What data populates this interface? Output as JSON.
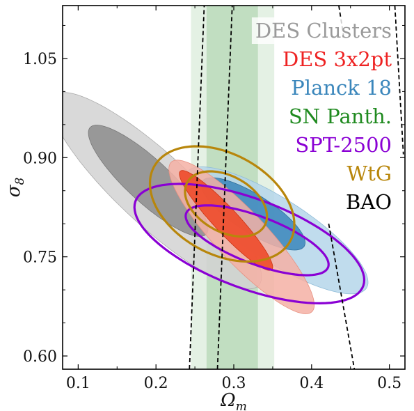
{
  "chart_data": {
    "type": "contour",
    "xlabel": "Ω",
    "xlabel_sub": "m",
    "ylabel": "σ",
    "ylabel_sub": "8",
    "xlim": [
      0.08,
      0.52
    ],
    "ylim": [
      0.58,
      1.13
    ],
    "x_ticks": [
      0.1,
      0.2,
      0.3,
      0.4,
      0.5
    ],
    "x_tick_labels": [
      "0.1",
      "0.2",
      "0.3",
      "0.4",
      "0.5"
    ],
    "y_ticks": [
      0.6,
      0.75,
      0.9,
      1.05
    ],
    "y_tick_labels": [
      "0.60",
      "0.75",
      "0.90",
      "1.05"
    ],
    "grid": false,
    "legend_position": "top-right",
    "legend": [
      {
        "label": "DES Clusters",
        "color": "#9a9a9a"
      },
      {
        "label": "DES 3x2pt",
        "color": "#ee2222"
      },
      {
        "label": "Planck 18",
        "color": "#3a86bb"
      },
      {
        "label": "SN Panth.",
        "color": "#1f8a1f"
      },
      {
        "label": "SPT-2500",
        "color": "#8a00d4"
      },
      {
        "label": "WtG",
        "color": "#b8860b"
      },
      {
        "label": "BAO",
        "color": "#000000"
      }
    ],
    "bands": [
      {
        "name": "SN Panth.",
        "level": "2sigma",
        "x_range": [
          0.245,
          0.352
        ],
        "color": "#1f8a1f",
        "opacity": 0.12
      },
      {
        "name": "SN Panth.",
        "level": "1sigma",
        "x_range": [
          0.265,
          0.331
        ],
        "color": "#1f8a1f",
        "opacity": 0.18
      }
    ],
    "filled_contours": [
      {
        "name": "DES Clusters",
        "level": "2sigma",
        "center": [
          0.2,
          0.85
        ],
        "semi_major": 0.195,
        "semi_minor": 0.05,
        "angle_deg": -48,
        "fill": "#d2d2d2",
        "stroke": "#aaaaaa"
      },
      {
        "name": "DES Clusters",
        "level": "1sigma",
        "center": [
          0.19,
          0.865
        ],
        "semi_major": 0.11,
        "semi_minor": 0.03,
        "angle_deg": -48,
        "fill": "#8c8c8c",
        "stroke": "#777777"
      },
      {
        "name": "Planck 18",
        "level": "2sigma",
        "center": [
          0.355,
          0.79
        ],
        "semi_major": 0.145,
        "semi_minor": 0.045,
        "angle_deg": -38,
        "fill": "#b5d6ea",
        "stroke": "#8fbcd8"
      },
      {
        "name": "Planck 18",
        "level": "1sigma",
        "center": [
          0.325,
          0.815
        ],
        "semi_major": 0.082,
        "semi_minor": 0.027,
        "angle_deg": -38,
        "fill": "#3a86bb",
        "stroke": "#2f6f9c"
      },
      {
        "name": "DES 3x2pt",
        "level": "2sigma",
        "center": [
          0.31,
          0.78
        ],
        "semi_major": 0.145,
        "semi_minor": 0.035,
        "angle_deg": -52,
        "fill": "#f5b0a5",
        "stroke": "#e89080"
      },
      {
        "name": "DES 3x2pt",
        "level": "1sigma",
        "center": [
          0.29,
          0.805
        ],
        "semi_major": 0.095,
        "semi_minor": 0.017,
        "angle_deg": -52,
        "fill": "#ee4422",
        "stroke": "#cc3311"
      }
    ],
    "line_contours": [
      {
        "name": "SPT-2500",
        "level": "2sigma",
        "center": [
          0.32,
          0.77
        ],
        "semi_major": 0.16,
        "semi_minor": 0.066,
        "angle_deg": -25,
        "color": "#8a00d4"
      },
      {
        "name": "SPT-2500",
        "level": "1sigma",
        "center": [
          0.33,
          0.775
        ],
        "semi_major": 0.1,
        "semi_minor": 0.035,
        "angle_deg": -25,
        "color": "#8a00d4"
      },
      {
        "name": "WtG",
        "level": "2sigma",
        "center": [
          0.285,
          0.83
        ],
        "semi_major": 0.105,
        "semi_minor": 0.072,
        "angle_deg": -40,
        "color": "#b8860b"
      },
      {
        "name": "WtG",
        "level": "1sigma",
        "center": [
          0.29,
          0.83
        ],
        "semi_major": 0.06,
        "semi_minor": 0.04,
        "angle_deg": -40,
        "color": "#b8860b"
      }
    ],
    "dashed_lines": [
      {
        "name": "BAO",
        "points": [
          [
            0.243,
            0.58
          ],
          [
            0.262,
            1.13
          ]
        ]
      },
      {
        "name": "BAO",
        "points": [
          [
            0.279,
            0.58
          ],
          [
            0.298,
            1.13
          ]
        ]
      },
      {
        "name": "BAO",
        "points": [
          [
            0.422,
            0.8
          ],
          [
            0.455,
            0.58
          ]
        ]
      },
      {
        "name": "BAO",
        "points": [
          [
            0.435,
            1.13
          ],
          [
            0.441,
            1.085
          ]
        ]
      },
      {
        "name": "BAO",
        "points": [
          [
            0.507,
            1.13
          ],
          [
            0.518,
            0.905
          ]
        ]
      }
    ]
  }
}
